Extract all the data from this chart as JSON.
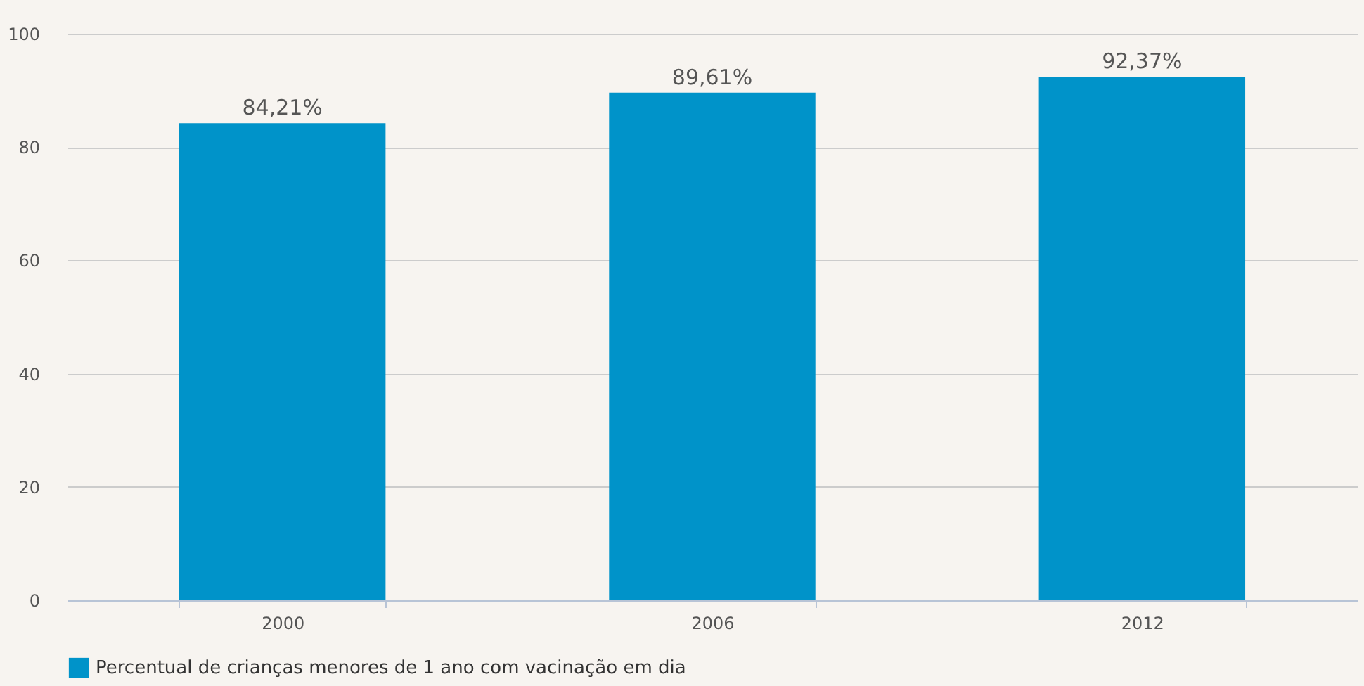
{
  "chart_data": {
    "type": "bar",
    "categories": [
      "2000",
      "2006",
      "2012"
    ],
    "series": [
      {
        "name": "Percentual de crianças menores de 1 ano com vacinação em dia",
        "color": "#0093c9",
        "values": [
          84.21,
          89.61,
          92.37
        ],
        "value_labels": [
          "84,21%",
          "89,61%",
          "92,37%"
        ]
      }
    ],
    "ylim": [
      0,
      100
    ],
    "yticks": [
      0,
      20,
      40,
      60,
      80,
      100
    ],
    "grid": "y",
    "legend": "bottom"
  }
}
